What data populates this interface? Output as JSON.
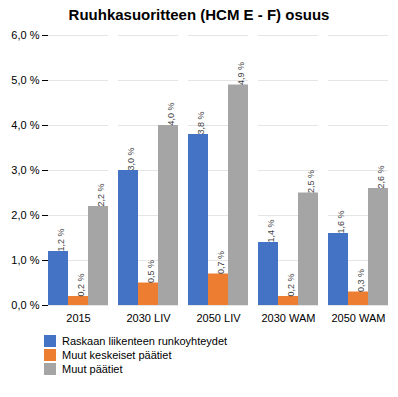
{
  "chart_data": {
    "type": "bar",
    "title": "Ruuhkasuoritteen (HCM E - F) osuus",
    "categories": [
      "2015",
      "2030 LIV",
      "2050 LIV",
      "2030 WAM",
      "2050 WAM"
    ],
    "series": [
      {
        "name": "Raskaan liikenteen runkoyhteydet",
        "color": "#4472C4",
        "values": [
          1.2,
          3.0,
          3.8,
          1.4,
          1.6
        ],
        "value_labels": [
          "1,2 %",
          "3,0 %",
          "3,8 %",
          "1,4 %",
          "1,6 %"
        ]
      },
      {
        "name": "Muut keskeiset päätiet",
        "color": "#ED7D31",
        "values": [
          0.2,
          0.5,
          0.7,
          0.2,
          0.3
        ],
        "value_labels": [
          "0,2 %",
          "0,5 %",
          "0,7 %",
          "0,2 %",
          "0,3 %"
        ]
      },
      {
        "name": "Muut päätiet",
        "color": "#A5A5A5",
        "values": [
          2.2,
          4.0,
          4.9,
          2.5,
          2.6
        ],
        "value_labels": [
          "2,2 %",
          "4,0 %",
          "4,9 %",
          "2,5 %",
          "2,6 %"
        ]
      }
    ],
    "ylim": [
      0,
      6.0
    ],
    "yticks": [
      {
        "value": 0.0,
        "label": "0,0 %"
      },
      {
        "value": 1.0,
        "label": "1,0 %"
      },
      {
        "value": 2.0,
        "label": "2,0 %"
      },
      {
        "value": 3.0,
        "label": "3,0 %"
      },
      {
        "value": 4.0,
        "label": "4,0 %"
      },
      {
        "value": 5.0,
        "label": "5,0 %"
      },
      {
        "value": 6.0,
        "label": "6,0 %"
      }
    ],
    "grid": true,
    "data_labels": true,
    "legend": "lower left"
  }
}
